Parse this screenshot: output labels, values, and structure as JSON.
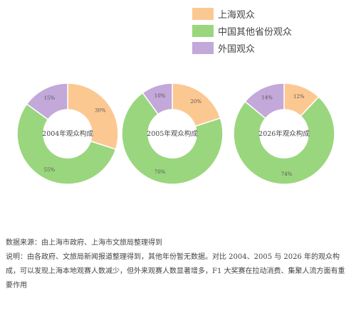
{
  "chart_data": {
    "type": "donut",
    "legend_position": "top-right",
    "series_names": [
      "上海观众",
      "中国其他省份观众",
      "外国观众"
    ],
    "colors": [
      "#fcc892",
      "#9ad67e",
      "#c3a8da"
    ],
    "charts": [
      {
        "title": "2004年观众构成",
        "values": [
          30,
          55,
          15
        ],
        "labels": [
          "30%",
          "55%",
          "15%"
        ]
      },
      {
        "title": "2005年观众构成",
        "values": [
          20,
          70,
          10
        ],
        "labels": [
          "20%",
          "70%",
          "10%"
        ]
      },
      {
        "title": "2026年观众构成",
        "values": [
          12,
          74,
          14
        ],
        "labels": [
          "12%",
          "74%",
          "14%"
        ]
      }
    ]
  },
  "notes": {
    "source": "数据来源：由上海市政府、上海市文旅局整理得到",
    "explanation": "说明：由各政府、文旅局新闻报道整理得到，其他年份暂无数据。对比 2004、2005 与 2026 年的观众构成，可以发现上海本地观赛人数减少，但外来观赛人数显著增多，F1 大奖赛在拉动消费、集聚人流方面有重要作用"
  }
}
